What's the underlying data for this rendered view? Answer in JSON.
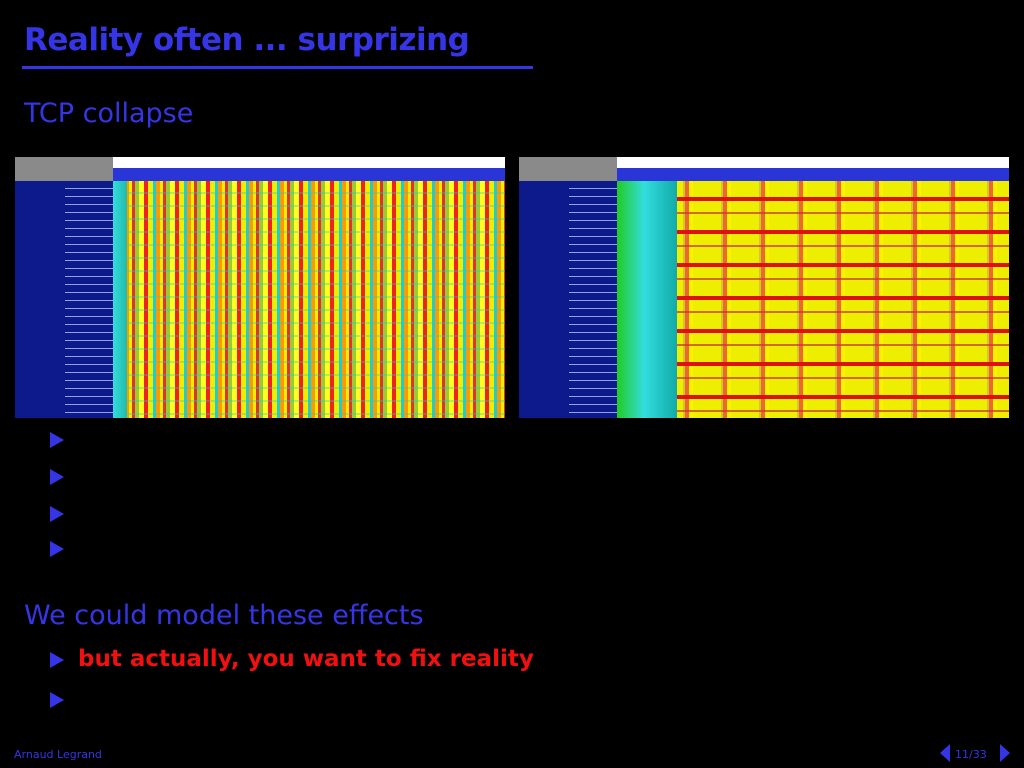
{
  "header": {
    "title": "Reality often ... surprizing",
    "subtitle": "TCP collapse"
  },
  "body": {
    "heading": "We could model these effects",
    "bullets": [
      "but actually, you want to fix reality"
    ]
  },
  "footer": {
    "author": "Arnaud Legrand",
    "page": "11/33"
  }
}
